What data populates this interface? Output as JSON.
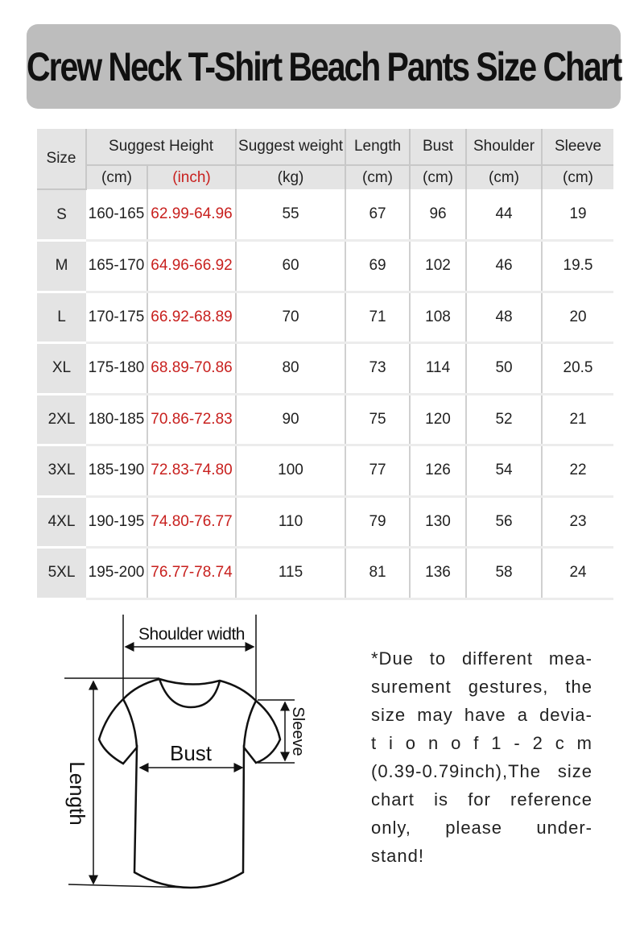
{
  "title": "Crew Neck T-Shirt Beach Pants Size Chart",
  "colors": {
    "title_bg": "#bdbdbd",
    "header_bg": "#e4e4e4",
    "inch_text": "#c8201e"
  },
  "table": {
    "headers": {
      "size": "Size",
      "height": "Suggest Height",
      "weight": "Suggest weight",
      "length": "Length",
      "bust": "Bust",
      "shoulder": "Shoulder",
      "sleeve": "Sleeve"
    },
    "units": {
      "height_cm": "(cm)",
      "height_inch": "(inch)",
      "weight": "(kg)",
      "length": "(cm)",
      "bust": "(cm)",
      "shoulder": "(cm)",
      "sleeve": "(cm)"
    },
    "rows": [
      {
        "size": "S",
        "cm": "160-165",
        "inch": "62.99-64.96",
        "weight": "55",
        "length": "67",
        "bust": "96",
        "shoulder": "44",
        "sleeve": "19"
      },
      {
        "size": "M",
        "cm": "165-170",
        "inch": "64.96-66.92",
        "weight": "60",
        "length": "69",
        "bust": "102",
        "shoulder": "46",
        "sleeve": "19.5"
      },
      {
        "size": "L",
        "cm": "170-175",
        "inch": "66.92-68.89",
        "weight": "70",
        "length": "71",
        "bust": "108",
        "shoulder": "48",
        "sleeve": "20"
      },
      {
        "size": "XL",
        "cm": "175-180",
        "inch": "68.89-70.86",
        "weight": "80",
        "length": "73",
        "bust": "114",
        "shoulder": "50",
        "sleeve": "20.5"
      },
      {
        "size": "2XL",
        "cm": "180-185",
        "inch": "70.86-72.83",
        "weight": "90",
        "length": "75",
        "bust": "120",
        "shoulder": "52",
        "sleeve": "21"
      },
      {
        "size": "3XL",
        "cm": "185-190",
        "inch": "72.83-74.80",
        "weight": "100",
        "length": "77",
        "bust": "126",
        "shoulder": "54",
        "sleeve": "22"
      },
      {
        "size": "4XL",
        "cm": "190-195",
        "inch": "74.80-76.77",
        "weight": "110",
        "length": "79",
        "bust": "130",
        "shoulder": "56",
        "sleeve": "23"
      },
      {
        "size": "5XL",
        "cm": "195-200",
        "inch": "76.77-78.74",
        "weight": "115",
        "length": "81",
        "bust": "136",
        "shoulder": "58",
        "sleeve": "24"
      }
    ]
  },
  "diagram": {
    "shoulder_label": "Shoulder width",
    "bust_label": "Bust",
    "length_label": "Length",
    "sleeve_label": "Sleeve"
  },
  "note_lines": [
    "*Due to different mea-",
    "surement gestures, the",
    "size may have a devia-",
    "t i o n  o f  1 - 2 c m",
    "(0.39-0.79inch),The size",
    "chart is for reference",
    "only, please under-",
    "stand!"
  ]
}
